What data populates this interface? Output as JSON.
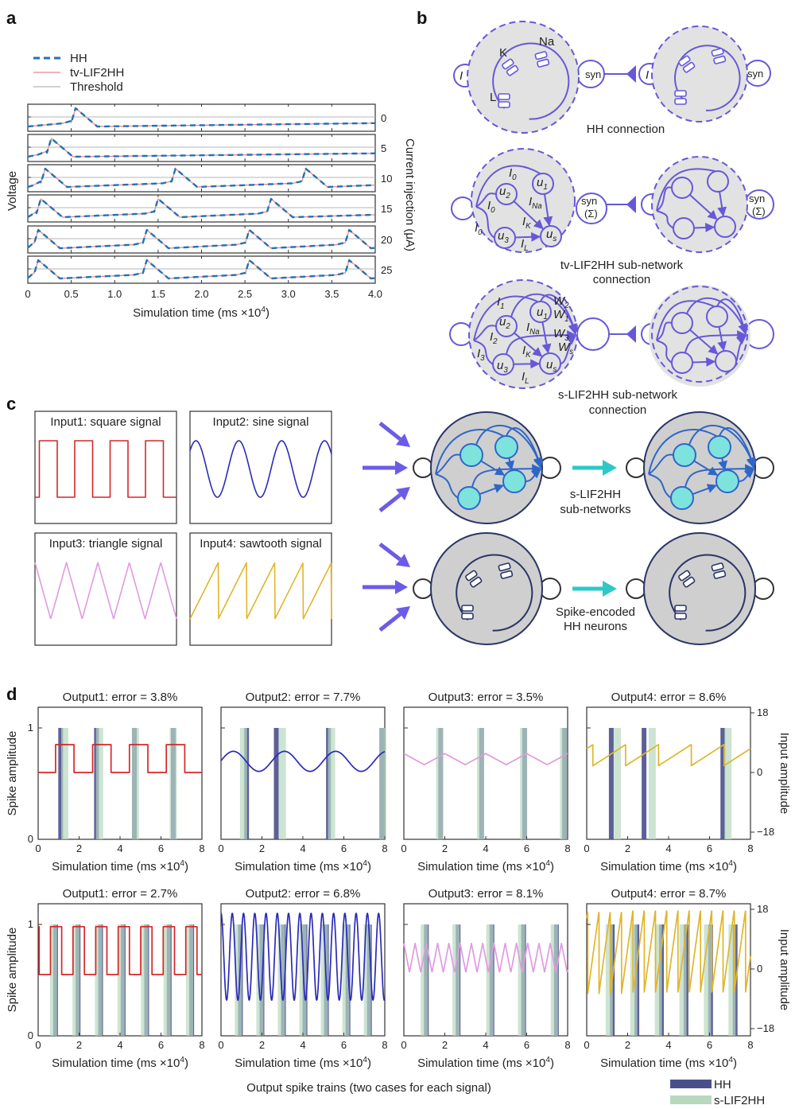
{
  "panel_labels": {
    "a": "a",
    "b": "b",
    "c": "c",
    "d": "d"
  },
  "xlabel": {
    "main": "Simulation time (ms ×10",
    "sup": "4",
    "end": ")"
  },
  "colors": {
    "hh_trace": "#1f72b8",
    "tv_lif2hh_trace": "#e58a8a",
    "threshold": "#b5b5b5",
    "diagram_purple": "#6658d8",
    "network_node": "#7ee3dc",
    "network_edge": "#2f66c8",
    "hh_spike": "#4a4f8c",
    "s_lif2hh_spike": "#b8d8c0",
    "square": "#d62728",
    "sine": "#2b2bb8",
    "triangle": "#e09ae0",
    "sawtooth": "#e0b52a",
    "cyan_arrow": "#2ec8c8"
  },
  "panel_b": {
    "rows": [
      {
        "caption": [
          "HH connection"
        ]
      },
      {
        "caption": [
          "tv-LIF2HH sub-network",
          "connection"
        ]
      },
      {
        "caption": [
          "s-LIF2HH sub-network",
          "connection"
        ]
      }
    ],
    "channel_labels": {
      "K": "K",
      "Na": "Na",
      "L": "L"
    },
    "input_label": "I",
    "syn_label": "syn",
    "syn_sigma": "(Σ)",
    "tv_labels": [
      {
        "t": "I",
        "s": "0"
      },
      {
        "t": "I",
        "s": "0"
      },
      {
        "t": "I",
        "s": "0"
      },
      {
        "t": "u",
        "s": "1"
      },
      {
        "t": "u",
        "s": "2"
      },
      {
        "t": "u",
        "s": "3"
      },
      {
        "t": "u",
        "s": "s"
      },
      {
        "t": "I",
        "s": "Na"
      },
      {
        "t": "I",
        "s": "K"
      },
      {
        "t": "I",
        "s": "L"
      }
    ],
    "s_labels": [
      {
        "t": "I",
        "s": "1"
      },
      {
        "t": "I",
        "s": "2"
      },
      {
        "t": "I",
        "s": "3"
      },
      {
        "t": "u",
        "s": "1"
      },
      {
        "t": "u",
        "s": "2"
      },
      {
        "t": "u",
        "s": "3"
      },
      {
        "t": "u",
        "s": "s"
      },
      {
        "t": "I",
        "s": "Na"
      },
      {
        "t": "I",
        "s": "K"
      },
      {
        "t": "I",
        "s": "L"
      },
      {
        "t": "W",
        "s": "2"
      },
      {
        "t": "W",
        "s": "1"
      },
      {
        "t": "W",
        "s": "3"
      },
      {
        "t": "W",
        "s": "s"
      }
    ]
  },
  "panel_c": {
    "inputs": [
      {
        "title": "Input1: square signal",
        "type": "square",
        "cycles": 4
      },
      {
        "title": "Input2: sine signal",
        "type": "sine",
        "cycles": 3.3
      },
      {
        "title": "Input3: triangle signal",
        "type": "triangle",
        "cycles": 4.5
      },
      {
        "title": "Input4: sawtooth signal",
        "type": "sawtooth",
        "cycles": 5
      }
    ],
    "network_label": [
      "s-LIF2HH",
      "sub-networks"
    ],
    "hh_label": [
      "Spike-encoded",
      "HH neurons"
    ]
  },
  "chart_data": [
    {
      "type": "line",
      "panel": "a",
      "legend": [
        {
          "label": "HH",
          "style": "dashed"
        },
        {
          "label": "tv-LIF2HH",
          "style": "solid"
        },
        {
          "label": "Threshold",
          "style": "solid"
        }
      ],
      "ylabel": "Voltage",
      "right_label": "Current injection (μA)",
      "xlim": [
        0,
        4.0
      ],
      "xticks": [
        "0",
        "0.5",
        "1.0",
        "1.5",
        "2.0",
        "2.5",
        "3.0",
        "3.5",
        "4.0"
      ],
      "traces": [
        {
          "current": "0",
          "spike_times": [
            0.55
          ]
        },
        {
          "current": "5",
          "spike_times": [
            0.27
          ]
        },
        {
          "current": "10",
          "spike_times": [
            0.2,
            1.7,
            3.2
          ]
        },
        {
          "current": "15",
          "spike_times": [
            0.15,
            1.5,
            2.8
          ]
        },
        {
          "current": "20",
          "spike_times": [
            0.12,
            1.37,
            2.55,
            3.7
          ]
        },
        {
          "current": "25",
          "spike_times": [
            0.12,
            1.37,
            2.55,
            3.7
          ]
        }
      ]
    },
    {
      "type": "bar",
      "panel": "d",
      "caption": "Output spike trains (two cases for each signal)",
      "ylabel_left": "Spike amplitude",
      "ylabel_right": "Input amplitude",
      "yticks_left": [
        "0",
        "1"
      ],
      "yticks_right": [
        "18",
        "0",
        "−18"
      ],
      "xlim": [
        0,
        8
      ],
      "xticks": [
        "0",
        "2",
        "4",
        "6",
        "8"
      ],
      "legend": [
        {
          "label": "HH"
        },
        {
          "label": "s-LIF2HH"
        }
      ],
      "rows": [
        [
          {
            "title": "Output1: error = 3.8%",
            "signal": "square",
            "period": 1.8,
            "hh": [
              1.1,
              2.85,
              4.7,
              6.6
            ],
            "slif": [
              1.3,
              3.0,
              4.75,
              6.6
            ]
          },
          {
            "title": "Output2: error = 7.7%",
            "signal": "sine",
            "period": 2.5,
            "hh": [
              1.25,
              2.7,
              5.25,
              7.85
            ],
            "slif": [
              1.1,
              3.0,
              5.4,
              7.9
            ]
          },
          {
            "title": "Output3: error = 3.5%",
            "signal": "triangle",
            "period": 2.0,
            "hh": [
              1.8,
              3.8,
              5.9,
              7.85
            ],
            "slif": [
              1.75,
              3.75,
              5.85,
              7.8
            ]
          },
          {
            "title": "Output4: error = 8.6%",
            "signal": "sawtooth",
            "period": 1.6,
            "hh": [
              1.2,
              2.8,
              6.65
            ],
            "slif": [
              1.5,
              3.2,
              6.9
            ]
          }
        ],
        [
          {
            "title": "Output1: error = 2.7%",
            "signal": "square",
            "period": 1.1,
            "hh": [
              0.85,
              1.95,
              3.05,
              4.15,
              5.3,
              6.4,
              7.5
            ],
            "slif": [
              0.75,
              1.85,
              2.95,
              4.05,
              5.2,
              6.3,
              7.4
            ]
          },
          {
            "title": "Output2: error = 6.8%",
            "signal": "sine",
            "period": 0.55,
            "hh": [
              0.95,
              2.0,
              3.05,
              4.1,
              5.15,
              6.2,
              7.25
            ],
            "slif": [
              0.85,
              1.9,
              2.95,
              4.0,
              5.05,
              6.1,
              7.15
            ]
          },
          {
            "title": "Output3: error = 8.1%",
            "signal": "triangle",
            "period": 0.55,
            "hh": [
              1.1,
              2.65,
              4.3,
              5.85,
              7.45
            ],
            "slif": [
              1.0,
              2.55,
              4.2,
              5.75,
              7.35
            ]
          },
          {
            "title": "Output4: error = 8.7%",
            "signal": "sawtooth",
            "period": 0.55,
            "hh": [
              1.25,
              2.45,
              3.65,
              4.85,
              6.05,
              7.25
            ],
            "slif": [
              1.1,
              2.3,
              3.5,
              4.7,
              5.9,
              7.1
            ]
          }
        ]
      ]
    }
  ]
}
